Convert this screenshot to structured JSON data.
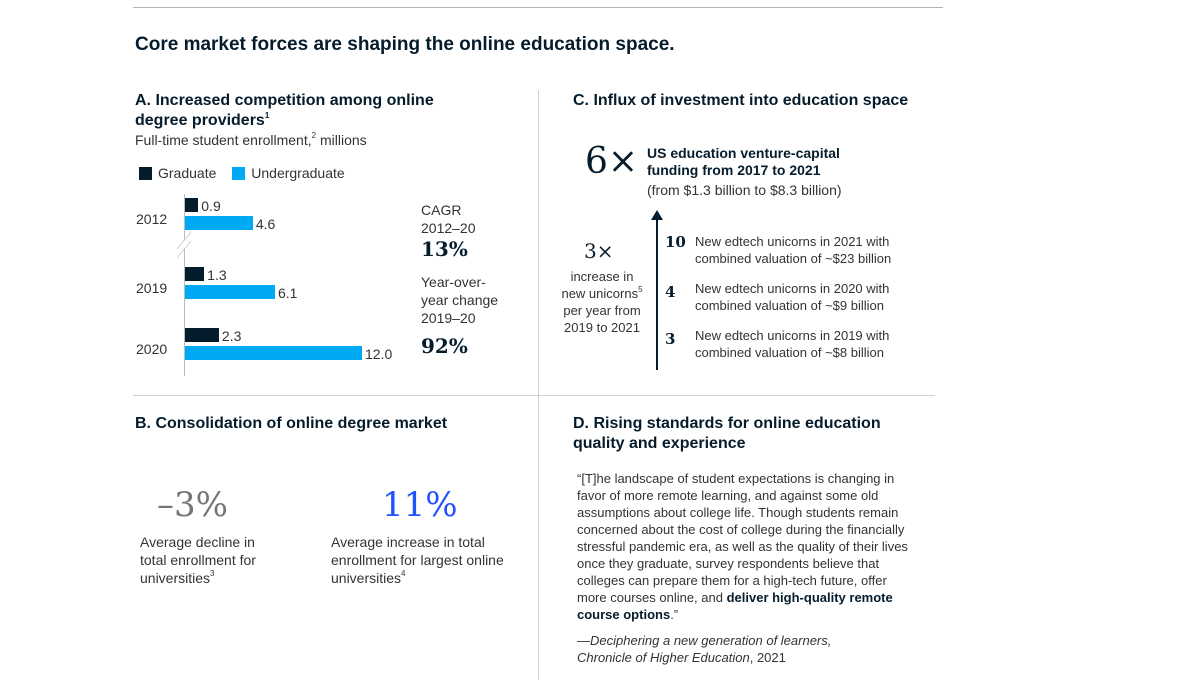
{
  "title": "Core market forces are shaping the online education space.",
  "colors": {
    "graduate": "#051c2c",
    "undergraduate": "#00a9f4",
    "accent_blue": "#2251ff",
    "gray": "#757575"
  },
  "a": {
    "title": "A. Increased competition among online degree providers",
    "title_sup": "1",
    "subtitle": "Full-time student enrollment,",
    "subtitle_sup": "2",
    "subtitle_unit": " millions",
    "cagr_label": "CAGR 2012–20",
    "cagr_value": "13%",
    "yoy_label": "Year-over-year change 2019–20",
    "yoy_value": "92%"
  },
  "chart_data": {
    "type": "bar",
    "orientation": "horizontal",
    "categories": [
      "2012",
      "2019",
      "2020"
    ],
    "series": [
      {
        "name": "Graduate",
        "values": [
          0.9,
          1.3,
          2.3
        ]
      },
      {
        "name": "Undergraduate",
        "values": [
          4.6,
          6.1,
          12.0
        ]
      }
    ],
    "value_labels": [
      [
        "0.9",
        "1.3",
        "2.3"
      ],
      [
        "4.6",
        "6.1",
        "12.0"
      ]
    ],
    "axis_break_between": [
      "2012",
      "2019"
    ],
    "legend": "top-left",
    "xlim": [
      0,
      12
    ]
  },
  "b": {
    "title": "B. Consolidation of online degree market",
    "stats": [
      {
        "value": "–3%",
        "text": "Average decline in total enrollment for universities",
        "sup": "3"
      },
      {
        "value": "11%",
        "text": "Average increase in total enrollment for largest online universities",
        "sup": "4"
      }
    ]
  },
  "c": {
    "title": "C. Influx of investment into education space",
    "multiple": "6×",
    "headline": "US education venture-capital funding from 2017 to 2021",
    "detail": "(from $1.3 billion to $8.3 billion)",
    "unicorn_multiple": "3×",
    "unicorn_text_a": "increase in new unicorns",
    "unicorn_sup": "5",
    "unicorn_text_b": "per year from 2019 to 2021",
    "items": [
      {
        "num": "10",
        "text": "New edtech unicorns in 2021 with combined valuation of ~$23 billion"
      },
      {
        "num": "4",
        "text": "New edtech unicorns in 2020 with combined valuation of ~$9 billion"
      },
      {
        "num": "3",
        "text": "New edtech unicorns in 2019 with combined valuation of ~$8 billion"
      }
    ]
  },
  "d": {
    "title": "D. Rising standards for online education quality and experience",
    "quote": "“[T]he landscape of student expectations is changing in favor of more remote learning, and against some old assumptions about college life. Though students remain concerned about the cost of college during the financially stressful pandemic era, as well as the quality of their lives once they graduate, survey respondents believe that colleges can prepare them for a high-tech future, offer more courses online, and ",
    "quote_bold": "deliver high-quality remote course options",
    "quote_end": ".”",
    "source_italic": "—Deciphering a new generation of learners, Chronicle of Higher Education",
    "source_year": ", 2021"
  }
}
